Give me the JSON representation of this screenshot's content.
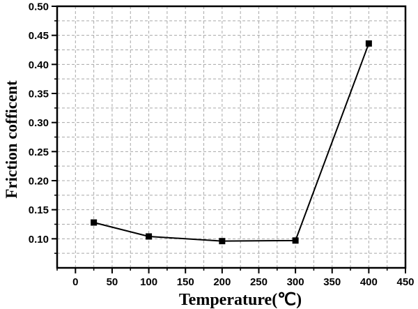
{
  "chart_data": {
    "type": "line",
    "title": "",
    "xlabel": "Temperature(℃)",
    "ylabel": "Friction cofficent",
    "xlim": [
      -25,
      450
    ],
    "ylim": [
      0.05,
      0.5
    ],
    "xticks": [
      0,
      50,
      100,
      150,
      200,
      250,
      300,
      350,
      400,
      450
    ],
    "yticks": [
      0.1,
      0.15,
      0.2,
      0.25,
      0.3,
      0.35,
      0.4,
      0.45,
      0.5
    ],
    "xtick_labels": [
      "0",
      "50",
      "100",
      "150",
      "200",
      "250",
      "300",
      "350",
      "400",
      "450"
    ],
    "ytick_labels": [
      "0.10",
      "0.15",
      "0.20",
      "0.25",
      "0.30",
      "0.35",
      "0.40",
      "0.45",
      "0.50"
    ],
    "grid": true,
    "legend": "none",
    "series": [
      {
        "marker": "square",
        "color": "#000000",
        "x": [
          25,
          100,
          200,
          300,
          400
        ],
        "y": [
          0.128,
          0.104,
          0.096,
          0.097,
          0.436
        ]
      }
    ]
  }
}
